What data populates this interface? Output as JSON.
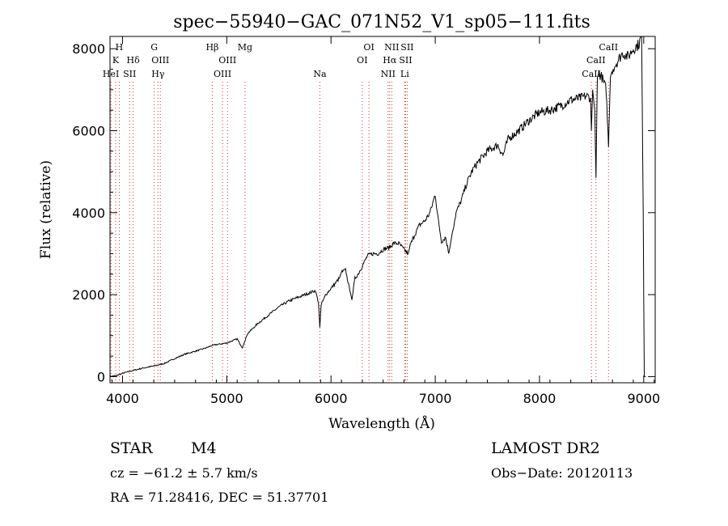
{
  "chart_data": {
    "type": "line",
    "title": "spec−55940−GAC_071N52_V1_sp05−111.fits",
    "xlabel": "Wavelength (Å)",
    "ylabel": "Flux (relative)",
    "xlim": [
      3880,
      9110
    ],
    "ylim": [
      -150,
      8300
    ],
    "x_ticks": [
      4000,
      5000,
      6000,
      7000,
      8000,
      9000
    ],
    "y_ticks": [
      0,
      2000,
      4000,
      6000,
      8000
    ],
    "grid": false,
    "legend": "none",
    "series_color": "#000000",
    "line_marker_color": "#d03030",
    "series": [
      {
        "x": [
          3880,
          3950,
          4000,
          4100,
          4200,
          4300,
          4350,
          4400,
          4500,
          4600,
          4700,
          4800,
          4860,
          4900,
          5000,
          5100,
          5150,
          5170,
          5200,
          5300,
          5400,
          5500,
          5600,
          5700,
          5800,
          5850,
          5880,
          5893,
          5905,
          5950,
          6000,
          6080,
          6100,
          6140,
          6180,
          6200,
          6230,
          6260,
          6300,
          6350,
          6400,
          6450,
          6500,
          6560,
          6600,
          6650,
          6700,
          6740,
          6760,
          6800,
          6850,
          6900,
          6950,
          7000,
          7030,
          7060,
          7100,
          7130,
          7150,
          7170,
          7200,
          7250,
          7300,
          7350,
          7400,
          7500,
          7600,
          7650,
          7700,
          7800,
          7900,
          8000,
          8100,
          8200,
          8300,
          8400,
          8450,
          8490,
          8498,
          8510,
          8530,
          8542,
          8555,
          8570,
          8600,
          8640,
          8662,
          8680,
          8700,
          8750,
          8800,
          8850,
          8900,
          8950,
          8980,
          8995,
          9005,
          9020
        ],
        "y": [
          0,
          30,
          80,
          150,
          210,
          260,
          290,
          320,
          440,
          550,
          620,
          700,
          760,
          780,
          820,
          920,
          700,
          850,
          1050,
          1300,
          1500,
          1700,
          1850,
          1950,
          2050,
          2100,
          1800,
          1200,
          1750,
          2000,
          2150,
          2400,
          2550,
          2600,
          2100,
          1900,
          2400,
          2500,
          2700,
          2950,
          3000,
          3000,
          3100,
          3150,
          3250,
          3250,
          3100,
          3000,
          3200,
          3450,
          3700,
          3800,
          4000,
          4450,
          3800,
          3300,
          3400,
          3000,
          3300,
          3600,
          4000,
          4300,
          4700,
          5000,
          5200,
          5500,
          5650,
          5400,
          5800,
          6000,
          6250,
          6450,
          6500,
          6600,
          6750,
          6800,
          6850,
          6800,
          6000,
          7000,
          6500,
          4850,
          7300,
          7400,
          7300,
          7000,
          5600,
          7300,
          7500,
          7700,
          7900,
          7800,
          8000,
          8100,
          8300,
          4000,
          0,
          0
        ]
      }
    ],
    "line_markers": [
      {
        "wavelength": 3889,
        "label": "HeI",
        "row": 3
      },
      {
        "wavelength": 3934,
        "label": "K",
        "row": 2
      },
      {
        "wavelength": 3969,
        "label": "H",
        "row": 1
      },
      {
        "wavelength": 4068,
        "label": "SII",
        "row": 3
      },
      {
        "wavelength": 4102,
        "label": "Hδ",
        "row": 2
      },
      {
        "wavelength": 4304,
        "label": "G",
        "row": 1
      },
      {
        "wavelength": 4340,
        "label": "Hγ",
        "row": 3
      },
      {
        "wavelength": 4363,
        "label": "OIII",
        "row": 2
      },
      {
        "wavelength": 4861,
        "label": "Hβ",
        "row": 1
      },
      {
        "wavelength": 4959,
        "label": "OIII",
        "row": 3
      },
      {
        "wavelength": 5007,
        "label": "OIII",
        "row": 2
      },
      {
        "wavelength": 5175,
        "label": "Mg",
        "row": 1
      },
      {
        "wavelength": 5893,
        "label": "Na",
        "row": 3
      },
      {
        "wavelength": 6300,
        "label": "OI",
        "row": 2
      },
      {
        "wavelength": 6364,
        "label": "OI",
        "row": 1
      },
      {
        "wavelength": 6548,
        "label": "NII",
        "row": 3
      },
      {
        "wavelength": 6563,
        "label": "Hα",
        "row": 2
      },
      {
        "wavelength": 6583,
        "label": "NII",
        "row": 1
      },
      {
        "wavelength": 6707,
        "label": "Li",
        "row": 3
      },
      {
        "wavelength": 6716,
        "label": "SII",
        "row": 2
      },
      {
        "wavelength": 6731,
        "label": "SII",
        "row": 1
      },
      {
        "wavelength": 8498,
        "label": "CaII",
        "row": 3
      },
      {
        "wavelength": 8542,
        "label": "CaII",
        "row": 2
      },
      {
        "wavelength": 8662,
        "label": "CaII",
        "row": 1
      }
    ]
  },
  "info": {
    "object_class": "STAR",
    "subclass": "M4",
    "survey": "LAMOST DR2",
    "cz": "cz = −61.2 ± 5.7 km/s",
    "obs_date": "Obs−Date: 20120113",
    "coords": "RA =  71.28416, DEC =  51.37701"
  }
}
